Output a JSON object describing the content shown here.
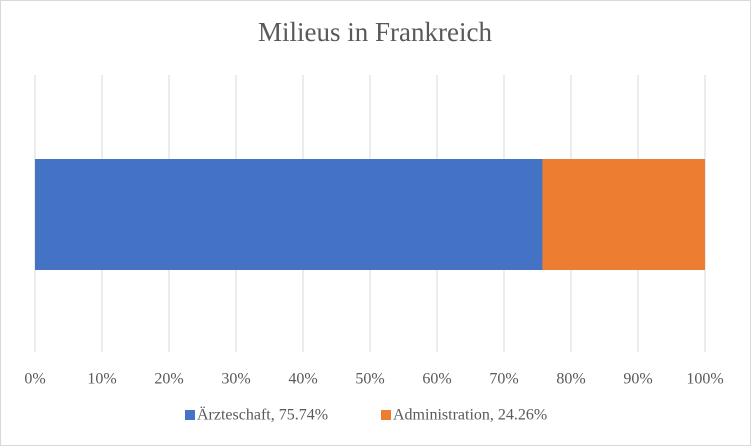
{
  "chart_data": {
    "type": "stacked_bar_horizontal",
    "title": "Milieus in Frankreich",
    "series": [
      {
        "name": "Ärzteschaft, 75.74%",
        "color": "#4472c4",
        "values": [
          75.74
        ]
      },
      {
        "name": "Administration, 24.26%",
        "color": "#ed7d31",
        "values": [
          24.26
        ]
      }
    ],
    "xlim": [
      0,
      100
    ],
    "xticks": [
      {
        "value": 0,
        "label": "0%"
      },
      {
        "value": 10,
        "label": "10%"
      },
      {
        "value": 20,
        "label": "20%"
      },
      {
        "value": 30,
        "label": "30%"
      },
      {
        "value": 40,
        "label": "40%"
      },
      {
        "value": 50,
        "label": "50%"
      },
      {
        "value": 60,
        "label": "60%"
      },
      {
        "value": 70,
        "label": "70%"
      },
      {
        "value": 80,
        "label": "80%"
      },
      {
        "value": 90,
        "label": "90%"
      },
      {
        "value": 100,
        "label": "100%"
      }
    ],
    "grid": true,
    "legend": "bottom"
  }
}
